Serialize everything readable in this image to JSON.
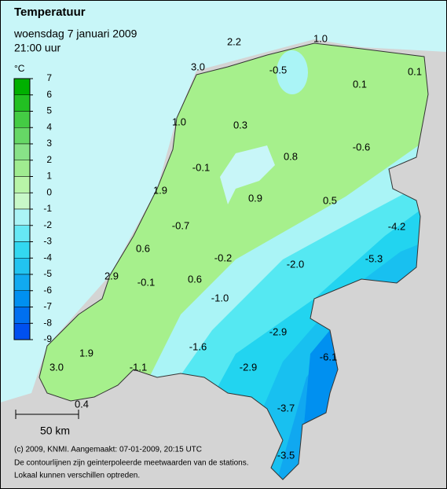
{
  "header": {
    "title": "Temperatuur",
    "date": "woensdag 7 januari 2009",
    "time": "21:00 uur"
  },
  "legend": {
    "unit": "°C",
    "ticks": [
      "7",
      "6",
      "5",
      "4",
      "3",
      "2",
      "1",
      "0",
      "-1",
      "-2",
      "-3",
      "-4",
      "-5",
      "-6",
      "-7",
      "-8",
      "-9"
    ],
    "colors": [
      "#00b000",
      "#22c022",
      "#44cc44",
      "#66d866",
      "#88e288",
      "#a0ec90",
      "#b8f4a8",
      "#c8f8c8",
      "#aaf4f6",
      "#66e8f4",
      "#33d8f0",
      "#22c4f0",
      "#11aaf0",
      "#0090f0",
      "#0070f0",
      "#0050f0"
    ]
  },
  "stations": [
    "2.2",
    "1.0",
    "3.0",
    "-0.5",
    "0.1",
    "0.1",
    "1.0",
    "0.3",
    "-0.6",
    "0.8",
    "-0.1",
    "1.9",
    "0.9",
    "0.5",
    "-4.2",
    "-0.7",
    "0.6",
    "-0.2",
    "-5.3",
    "-2.0",
    "2.9",
    "-0.1",
    "0.6",
    "-1.0",
    "-2.9",
    "1.9",
    "-1.6",
    "-6.1",
    "-1.1",
    "-2.9",
    "3.0",
    "0.4",
    "-3.7",
    "-3.5"
  ],
  "scale": "50 km",
  "footer": [
    "(c) 2009, KNMI. Aangemaakt: 07-01-2009, 20:15 UTC",
    "De contourlijnen zijn geinterpoleerde meetwaarden van de stations.",
    "Lokaal kunnen verschillen optreden."
  ]
}
